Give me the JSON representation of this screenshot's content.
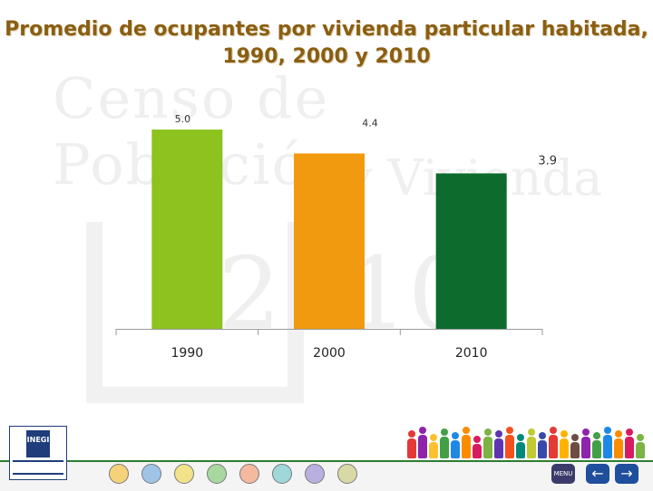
{
  "title_line1": "Promedio de ocupantes por vivienda particular habitada,",
  "title_line2": "1990, 2000 y 2010",
  "watermark": {
    "line1": "Censo de Población",
    "line2": "y Vivienda",
    "line3": "2010"
  },
  "chart_data": {
    "type": "bar",
    "categories": [
      "1990",
      "2000",
      "2010"
    ],
    "values": [
      5.0,
      4.4,
      3.9
    ],
    "value_labels": [
      "5.0",
      "4.4",
      "3.9"
    ],
    "colors": [
      "#8dc21f",
      "#f29a0f",
      "#0d6b2e"
    ],
    "ylim": [
      0,
      5.0
    ],
    "grid": false,
    "legend": "none"
  },
  "footer": {
    "logo_text": "INEGI",
    "logo_caption": "INSTITUTO NACIONAL DE ESTADÍSTICA Y GEOGRAFÍA",
    "menu_label": "MENU",
    "prev_glyph": "←",
    "next_glyph": "→",
    "nav_color": "#1f4e9c",
    "accent_green": "#2e7d32"
  }
}
